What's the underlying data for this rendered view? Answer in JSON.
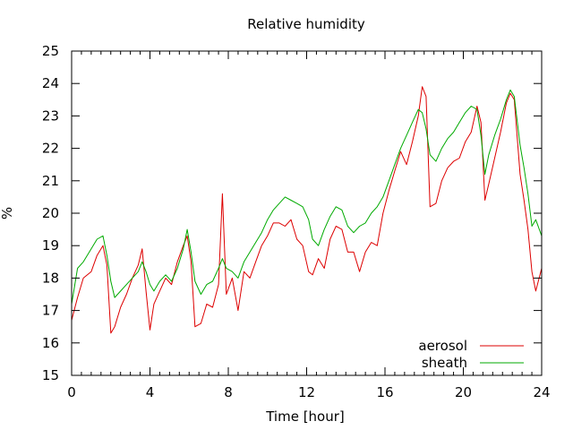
{
  "chart_data": {
    "type": "line",
    "title": "Relative humidity",
    "xlabel": "Time [hour]",
    "ylabel": "%",
    "xlim": [
      0,
      24
    ],
    "ylim": [
      15,
      25
    ],
    "xticks": [
      0,
      4,
      8,
      12,
      16,
      20,
      24
    ],
    "yticks": [
      15,
      16,
      17,
      18,
      19,
      20,
      21,
      22,
      23,
      24,
      25
    ],
    "grid": false,
    "legend_position": "bottom-right",
    "series": [
      {
        "name": "aerosol",
        "color": "#dd0000",
        "x": [
          0,
          0.3,
          0.6,
          1.0,
          1.3,
          1.6,
          1.8,
          2.0,
          2.2,
          2.5,
          2.8,
          3.1,
          3.4,
          3.6,
          3.8,
          4.0,
          4.2,
          4.5,
          4.8,
          5.1,
          5.4,
          5.7,
          5.9,
          6.1,
          6.3,
          6.6,
          6.9,
          7.2,
          7.5,
          7.7,
          7.9,
          8.2,
          8.5,
          8.8,
          9.1,
          9.4,
          9.7,
          10.0,
          10.3,
          10.6,
          10.9,
          11.2,
          11.5,
          11.8,
          12.1,
          12.3,
          12.6,
          12.9,
          13.2,
          13.5,
          13.8,
          14.1,
          14.4,
          14.7,
          15.0,
          15.3,
          15.6,
          15.9,
          16.2,
          16.5,
          16.8,
          17.1,
          17.4,
          17.7,
          17.9,
          18.1,
          18.3,
          18.6,
          18.9,
          19.2,
          19.5,
          19.8,
          20.1,
          20.4,
          20.7,
          20.9,
          21.1,
          21.3,
          21.6,
          21.9,
          22.2,
          22.4,
          22.6,
          22.9,
          23.1,
          23.3,
          23.5,
          23.7,
          24.0
        ],
        "values": [
          16.7,
          17.4,
          18.0,
          18.2,
          18.7,
          19.0,
          18.4,
          16.3,
          16.5,
          17.1,
          17.5,
          18.0,
          18.4,
          18.9,
          17.6,
          16.4,
          17.2,
          17.6,
          18.0,
          17.8,
          18.5,
          19.0,
          19.3,
          18.5,
          16.5,
          16.6,
          17.2,
          17.1,
          17.8,
          20.6,
          17.5,
          18.0,
          17.0,
          18.2,
          18.0,
          18.5,
          19.0,
          19.3,
          19.7,
          19.7,
          19.6,
          19.8,
          19.2,
          19.0,
          18.2,
          18.1,
          18.6,
          18.3,
          19.2,
          19.6,
          19.5,
          18.8,
          18.8,
          18.2,
          18.8,
          19.1,
          19.0,
          20.0,
          20.7,
          21.3,
          21.9,
          21.5,
          22.2,
          23.0,
          23.9,
          23.6,
          20.2,
          20.3,
          21.0,
          21.4,
          21.6,
          21.7,
          22.2,
          22.5,
          23.3,
          22.8,
          20.4,
          20.9,
          21.7,
          22.5,
          23.4,
          23.7,
          23.5,
          21.2,
          20.4,
          19.5,
          18.2,
          17.6,
          18.3
        ]
      },
      {
        "name": "sheath",
        "color": "#00aa00",
        "x": [
          0,
          0.3,
          0.6,
          1.0,
          1.3,
          1.6,
          1.8,
          2.0,
          2.2,
          2.5,
          2.8,
          3.1,
          3.4,
          3.6,
          3.8,
          4.0,
          4.2,
          4.5,
          4.8,
          5.1,
          5.4,
          5.7,
          5.9,
          6.1,
          6.3,
          6.6,
          6.9,
          7.2,
          7.5,
          7.7,
          7.9,
          8.2,
          8.5,
          8.8,
          9.1,
          9.4,
          9.7,
          10.0,
          10.3,
          10.6,
          10.9,
          11.2,
          11.5,
          11.8,
          12.1,
          12.3,
          12.6,
          12.9,
          13.2,
          13.5,
          13.8,
          14.1,
          14.4,
          14.7,
          15.0,
          15.3,
          15.6,
          15.9,
          16.2,
          16.5,
          16.8,
          17.1,
          17.4,
          17.7,
          17.9,
          18.1,
          18.3,
          18.6,
          18.9,
          19.2,
          19.5,
          19.8,
          20.1,
          20.4,
          20.7,
          20.9,
          21.1,
          21.3,
          21.6,
          21.9,
          22.2,
          22.4,
          22.6,
          22.9,
          23.1,
          23.3,
          23.5,
          23.7,
          24.0
        ],
        "values": [
          17.2,
          18.3,
          18.5,
          18.9,
          19.2,
          19.3,
          18.7,
          17.9,
          17.4,
          17.6,
          17.8,
          18.0,
          18.2,
          18.5,
          18.2,
          17.8,
          17.6,
          17.9,
          18.1,
          17.9,
          18.3,
          18.9,
          19.5,
          18.8,
          17.9,
          17.5,
          17.8,
          17.9,
          18.3,
          18.6,
          18.3,
          18.2,
          18.0,
          18.5,
          18.8,
          19.1,
          19.4,
          19.8,
          20.1,
          20.3,
          20.5,
          20.4,
          20.3,
          20.2,
          19.8,
          19.2,
          19.0,
          19.5,
          19.9,
          20.2,
          20.1,
          19.6,
          19.4,
          19.6,
          19.7,
          20.0,
          20.2,
          20.5,
          21.0,
          21.5,
          22.0,
          22.4,
          22.8,
          23.2,
          23.1,
          22.6,
          21.8,
          21.6,
          22.0,
          22.3,
          22.5,
          22.8,
          23.1,
          23.3,
          23.2,
          22.4,
          21.2,
          21.8,
          22.4,
          22.9,
          23.5,
          23.8,
          23.6,
          22.1,
          21.4,
          20.6,
          19.6,
          19.8,
          19.3
        ]
      }
    ]
  }
}
